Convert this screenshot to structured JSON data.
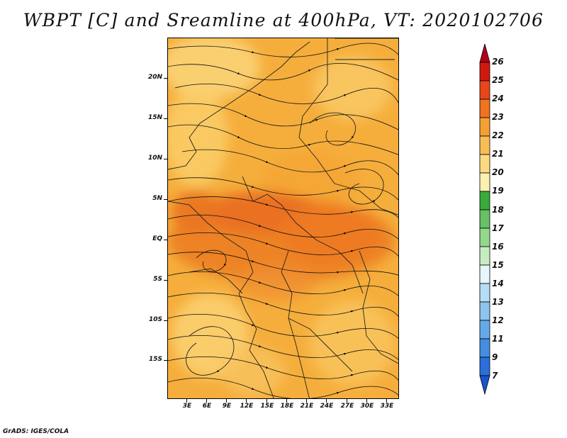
{
  "title": "WBPT [C] and Sreamline at 400hPa, VT: 2020102706",
  "credit": "GrADS: IGES/COLA",
  "map": {
    "variable": "WBPT [C]",
    "level": "400hPa",
    "valid_time": "2020102706",
    "lat_ticks": [
      "20N",
      "15N",
      "10N",
      "5N",
      "EQ",
      "5S",
      "10S",
      "15S"
    ],
    "lon_ticks": [
      "3E",
      "6E",
      "9E",
      "12E",
      "15E",
      "18E",
      "21E",
      "24E",
      "27E",
      "30E",
      "33E"
    ],
    "base_color": "#f5ae3c"
  },
  "colorbar": {
    "labels": [
      "26",
      "25",
      "24",
      "23",
      "22",
      "21",
      "20",
      "19",
      "18",
      "17",
      "16",
      "15",
      "14",
      "13",
      "12",
      "11",
      "9",
      "7"
    ],
    "colors": [
      "#b2001a",
      "#d01a0e",
      "#e8451a",
      "#f1731e",
      "#f5a032",
      "#f8bd55",
      "#fcda84",
      "#fdf0b0",
      "#3aaa3a",
      "#66c265",
      "#94d88e",
      "#c8ecc2",
      "#e6f6fb",
      "#b6ddf6",
      "#8cc4ef",
      "#66a9e8",
      "#448ee1",
      "#2a6fda",
      "#1a55d0"
    ]
  }
}
